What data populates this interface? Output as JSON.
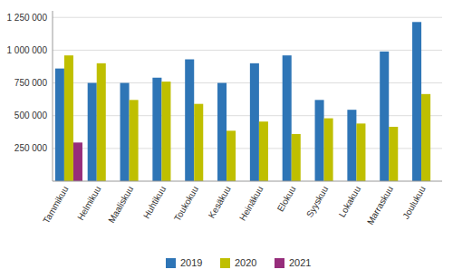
{
  "chart_data": {
    "type": "bar",
    "categories": [
      "Tammikuu",
      "Helmikuu",
      "Maaliskuu",
      "Huhtikuu",
      "Toukokuu",
      "Kesäkuu",
      "Heinäkuu",
      "Elokuu",
      "Syyskuu",
      "Lokakuu",
      "Marraskuu",
      "Joulukuu"
    ],
    "series": [
      {
        "name": "2019",
        "color": "#2E75B6",
        "values": [
          860000,
          750000,
          750000,
          790000,
          930000,
          750000,
          900000,
          960000,
          620000,
          545000,
          990000,
          1215000
        ]
      },
      {
        "name": "2020",
        "color": "#BFBF00",
        "values": [
          960000,
          900000,
          620000,
          760000,
          590000,
          385000,
          455000,
          360000,
          480000,
          440000,
          415000,
          665000
        ]
      },
      {
        "name": "2021",
        "color": "#962D7B",
        "values": [
          295000,
          0,
          0,
          0,
          0,
          0,
          0,
          0,
          0,
          0,
          0,
          0
        ]
      }
    ],
    "ylim": [
      0,
      1300000
    ],
    "yticks": [
      {
        "value": 250000,
        "label": "250 000"
      },
      {
        "value": 500000,
        "label": "500 000"
      },
      {
        "value": 750000,
        "label": "750 000"
      },
      {
        "value": 1000000,
        "label": "1 000 000"
      },
      {
        "value": 1250000,
        "label": "1 250 000"
      }
    ],
    "grid": true,
    "legend": "bottom"
  }
}
